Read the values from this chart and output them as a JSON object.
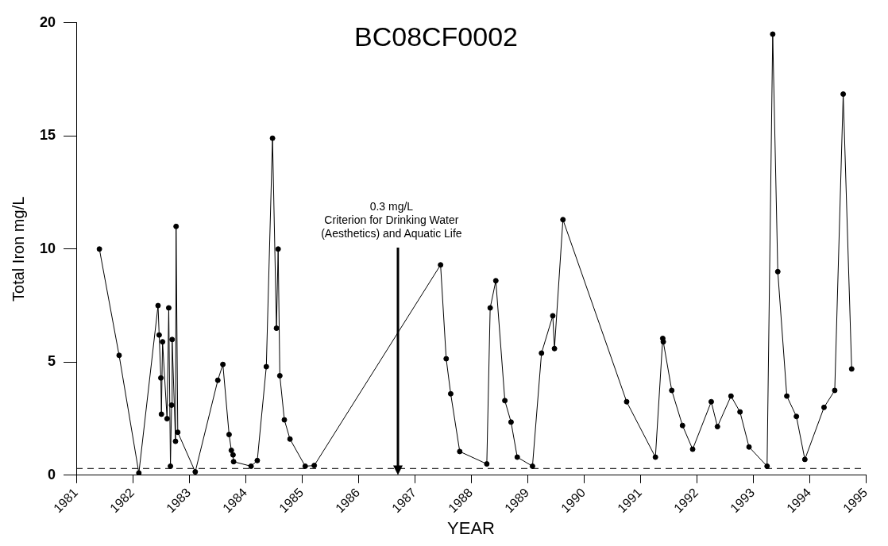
{
  "chart_data": {
    "type": "line",
    "title": "BC08CF0002",
    "xlabel": "YEAR",
    "ylabel": "Total Iron mg/L",
    "x": [
      1981.41,
      1981.76,
      1982.11,
      1982.45,
      1982.47,
      1982.5,
      1982.51,
      1982.53,
      1982.61,
      1982.64,
      1982.67,
      1982.69,
      1982.7,
      1982.76,
      1982.77,
      1982.8,
      1983.11,
      1983.51,
      1983.6,
      1983.71,
      1983.75,
      1983.78,
      1983.79,
      1984.1,
      1984.21,
      1984.37,
      1984.48,
      1984.55,
      1984.58,
      1984.61,
      1984.69,
      1984.79,
      1985.06,
      1985.22,
      1987.46,
      1987.56,
      1987.64,
      1987.8,
      1988.28,
      1988.34,
      1988.44,
      1988.6,
      1988.71,
      1988.82,
      1989.09,
      1989.25,
      1989.45,
      1989.48,
      1989.63,
      1990.76,
      1991.27,
      1991.4,
      1991.41,
      1991.56,
      1991.75,
      1991.93,
      1992.26,
      1992.37,
      1992.61,
      1992.77,
      1992.93,
      1993.25,
      1993.35,
      1993.44,
      1993.6,
      1993.77,
      1993.92,
      1994.26,
      1994.45,
      1994.6,
      1994.75
    ],
    "series": [
      {
        "color": "#000000",
        "values": [
          10,
          5.3,
          0.1,
          7.5,
          6.2,
          4.3,
          2.7,
          5.9,
          2.5,
          7.4,
          0.4,
          3.1,
          6,
          1.5,
          11,
          1.9,
          0.15,
          4.2,
          4.9,
          1.8,
          1.1,
          0.9,
          0.6,
          0.4,
          0.65,
          4.8,
          14.9,
          6.5,
          10,
          4.4,
          2.45,
          1.6,
          0.4,
          0.43,
          9.3,
          5.15,
          3.6,
          1.05,
          0.5,
          7.4,
          8.6,
          3.3,
          2.35,
          0.8,
          0.4,
          5.4,
          7.05,
          5.6,
          11.3,
          3.25,
          0.8,
          6.05,
          5.9,
          3.75,
          2.2,
          1.15,
          3.25,
          2.15,
          3.5,
          2.8,
          1.25,
          0.4,
          19.5,
          9,
          3.5,
          2.6,
          0.7,
          3,
          3.75,
          16.85,
          4.7
        ]
      }
    ],
    "xlim": [
      1981,
      1995
    ],
    "xticks": [
      1981,
      1982,
      1983,
      1984,
      1985,
      1986,
      1987,
      1988,
      1989,
      1990,
      1991,
      1992,
      1993,
      1994,
      1995
    ],
    "ylim": [
      0,
      20
    ],
    "yticks": [
      0,
      5,
      10,
      15,
      20
    ],
    "grid": false,
    "legend": false,
    "marker": "circle",
    "line_style": "solid",
    "ref_lines": [
      {
        "axis": "y",
        "value": 0.3,
        "line_style": "dashed",
        "color": "#000000"
      }
    ],
    "annotations": [
      {
        "text": "0.3 mg/L\nCriterion for Drinking Water\n(Aesthetics) and Aquatic Life",
        "x": 1986.59,
        "y": 0.3
      }
    ]
  }
}
